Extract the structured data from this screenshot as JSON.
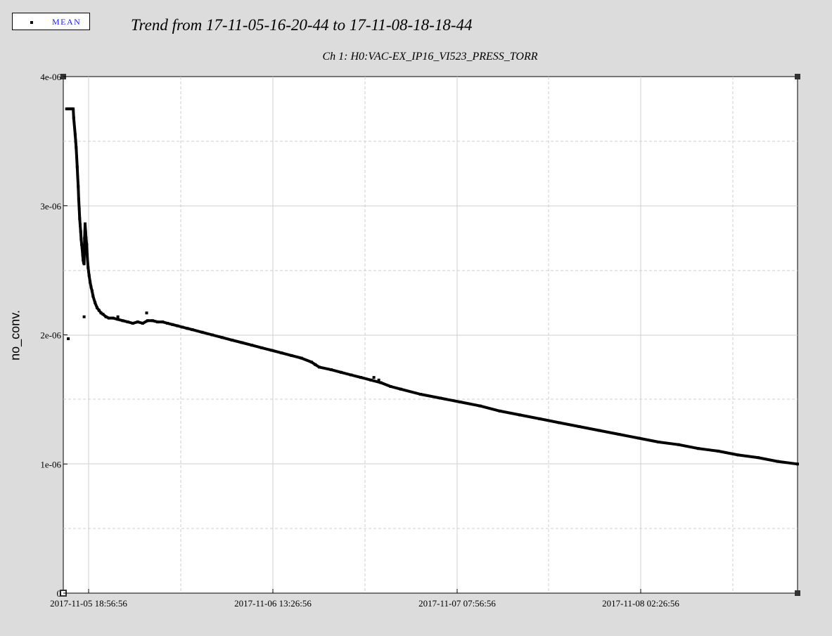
{
  "legend": {
    "label": "MEAN",
    "label_color": "#1a1aff"
  },
  "title": "Trend from 17-11-05-16-20-44 to 17-11-08-18-18-44",
  "chart_data": {
    "type": "scatter",
    "title": "Ch 1: H0:VAC-EX_IP16_VI523_PRESS_TORR",
    "xlabel": "",
    "ylabel": "no_conv.",
    "x_unit": "hours since 2017-11-05 16:20:44",
    "xlim": [
      0,
      74
    ],
    "ylim": [
      0,
      4e-06
    ],
    "x_tick_labels": [
      "2017-11-05 18:56:56",
      "2017-11-06 13:26:56",
      "2017-11-07 07:56:56",
      "2017-11-08 02:26:56"
    ],
    "y_tick_labels": [
      "0",
      "1e-06",
      "2e-06",
      "3e-06",
      "4e-06"
    ],
    "y_ticks": [
      0,
      1e-06,
      2e-06,
      3e-06,
      4e-06
    ],
    "grid": true,
    "legend_position": "top-left",
    "series": [
      {
        "name": "MEAN",
        "color": "#000000",
        "x": [
          0.33,
          0.5,
          0.67,
          0.85,
          1.0,
          1.05,
          1.2,
          1.25,
          1.3,
          1.35,
          1.4,
          1.45,
          1.5,
          1.55,
          1.6,
          1.65,
          1.7,
          1.75,
          1.8,
          1.85,
          1.9,
          1.95,
          2.0,
          2.05,
          2.1,
          2.15,
          2.2,
          2.25,
          2.3,
          2.35,
          2.4,
          2.5,
          2.6,
          2.7,
          2.8,
          2.9,
          3.0,
          3.2,
          3.4,
          3.6,
          3.8,
          4.0,
          4.3,
          4.6,
          5.0,
          5.5,
          6.0,
          6.5,
          7.0,
          7.5,
          8.0,
          8.5,
          9.0,
          9.5,
          10.0,
          10.5,
          11.0,
          11.5,
          12.0,
          12.5,
          13.0,
          14.0,
          15.0,
          16.0,
          17.0,
          18.0,
          19.0,
          20.0,
          21.0,
          22.0,
          23.0,
          24.0,
          25.0,
          25.4,
          25.8,
          27.0,
          28.0,
          29.0,
          30.0,
          31.0,
          32.0,
          33.0,
          34.0,
          36.0,
          38.0,
          40.0,
          42.0,
          44.0,
          46.0,
          48.0,
          50.0,
          52.0,
          54.0,
          56.0,
          58.0,
          60.0,
          62.0,
          64.0,
          66.0,
          68.0,
          70.0,
          72.0,
          74.0,
          0.5,
          2.1,
          5.5,
          8.4,
          31.3,
          31.8
        ],
        "y": [
          3.75e-06,
          3.75e-06,
          3.75e-06,
          3.75e-06,
          3.75e-06,
          3.68e-06,
          3.55e-06,
          3.5e-06,
          3.45e-06,
          3.38e-06,
          3.3e-06,
          3.22e-06,
          3.15e-06,
          3.05e-06,
          2.98e-06,
          2.9e-06,
          2.85e-06,
          2.8e-06,
          2.74e-06,
          2.7e-06,
          2.67e-06,
          2.62e-06,
          2.58e-06,
          2.56e-06,
          2.55e-06,
          2.75e-06,
          2.86e-06,
          2.8e-06,
          2.75e-06,
          2.7e-06,
          2.62e-06,
          2.52e-06,
          2.46e-06,
          2.41e-06,
          2.37e-06,
          2.34e-06,
          2.3e-06,
          2.25e-06,
          2.21e-06,
          2.19e-06,
          2.17e-06,
          2.16e-06,
          2.14e-06,
          2.13e-06,
          2.13e-06,
          2.12e-06,
          2.11e-06,
          2.1e-06,
          2.09e-06,
          2.1e-06,
          2.09e-06,
          2.11e-06,
          2.11e-06,
          2.1e-06,
          2.1e-06,
          2.09e-06,
          2.08e-06,
          2.07e-06,
          2.06e-06,
          2.05e-06,
          2.04e-06,
          2.02e-06,
          2e-06,
          1.98e-06,
          1.96e-06,
          1.94e-06,
          1.92e-06,
          1.9e-06,
          1.88e-06,
          1.86e-06,
          1.84e-06,
          1.82e-06,
          1.79e-06,
          1.77e-06,
          1.75e-06,
          1.73e-06,
          1.71e-06,
          1.69e-06,
          1.67e-06,
          1.65e-06,
          1.63e-06,
          1.6e-06,
          1.58e-06,
          1.54e-06,
          1.51e-06,
          1.48e-06,
          1.45e-06,
          1.41e-06,
          1.38e-06,
          1.35e-06,
          1.32e-06,
          1.29e-06,
          1.26e-06,
          1.23e-06,
          1.2e-06,
          1.17e-06,
          1.15e-06,
          1.12e-06,
          1.1e-06,
          1.07e-06,
          1.05e-06,
          1.02e-06,
          1e-06,
          1.97e-06,
          2.14e-06,
          2.14e-06,
          2.17e-06,
          1.67e-06,
          1.65e-06
        ]
      }
    ]
  }
}
